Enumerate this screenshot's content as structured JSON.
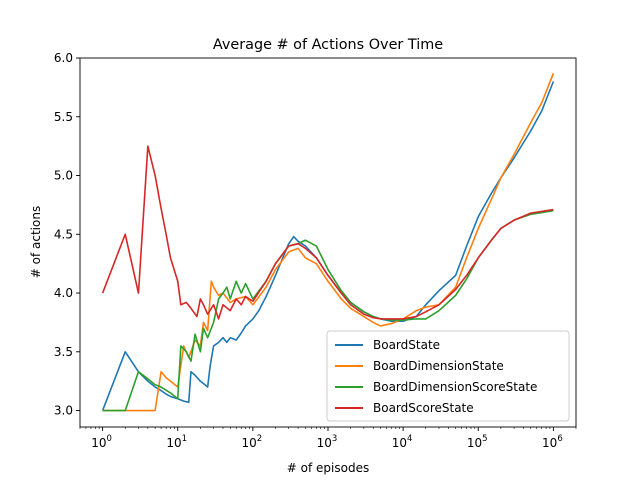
{
  "chart_data": {
    "type": "line",
    "title": "Average # of Actions Over Time",
    "xlabel": "# of episodes",
    "ylabel": "# of actions",
    "xscale": "log",
    "xlim": [
      0.5,
      2000000
    ],
    "ylim": [
      2.86,
      6.0
    ],
    "xticks": [
      {
        "value": 1,
        "base": "10",
        "exp": "0"
      },
      {
        "value": 10,
        "base": "10",
        "exp": "1"
      },
      {
        "value": 100,
        "base": "10",
        "exp": "2"
      },
      {
        "value": 1000,
        "base": "10",
        "exp": "3"
      },
      {
        "value": 10000,
        "base": "10",
        "exp": "4"
      },
      {
        "value": 100000,
        "base": "10",
        "exp": "5"
      },
      {
        "value": 1000000,
        "base": "10",
        "exp": "6"
      }
    ],
    "yticks": [
      {
        "value": 3.0,
        "label": "3.0"
      },
      {
        "value": 3.5,
        "label": "3.5"
      },
      {
        "value": 4.0,
        "label": "4.0"
      },
      {
        "value": 4.5,
        "label": "4.5"
      },
      {
        "value": 5.0,
        "label": "5.0"
      },
      {
        "value": 5.5,
        "label": "5.5"
      },
      {
        "value": 6.0,
        "label": "6.0"
      }
    ],
    "grid": false,
    "legend_position": "lower-right",
    "series": [
      {
        "name": "BoardState",
        "color": "#1f77b4",
        "points": [
          [
            1,
            3.0
          ],
          [
            2,
            3.5
          ],
          [
            3,
            3.33
          ],
          [
            4,
            3.25
          ],
          [
            5,
            3.2
          ],
          [
            6,
            3.17
          ],
          [
            7,
            3.14
          ],
          [
            8,
            3.12
          ],
          [
            10,
            3.1
          ],
          [
            12,
            3.08
          ],
          [
            14,
            3.07
          ],
          [
            15,
            3.33
          ],
          [
            17,
            3.3
          ],
          [
            20,
            3.25
          ],
          [
            23,
            3.22
          ],
          [
            25,
            3.2
          ],
          [
            27,
            3.38
          ],
          [
            30,
            3.55
          ],
          [
            35,
            3.58
          ],
          [
            40,
            3.62
          ],
          [
            45,
            3.58
          ],
          [
            50,
            3.62
          ],
          [
            60,
            3.6
          ],
          [
            70,
            3.66
          ],
          [
            80,
            3.72
          ],
          [
            100,
            3.78
          ],
          [
            120,
            3.85
          ],
          [
            150,
            3.97
          ],
          [
            200,
            4.15
          ],
          [
            250,
            4.3
          ],
          [
            300,
            4.42
          ],
          [
            350,
            4.48
          ],
          [
            400,
            4.44
          ],
          [
            500,
            4.4
          ],
          [
            700,
            4.3
          ],
          [
            1000,
            4.15
          ],
          [
            1500,
            4.0
          ],
          [
            2000,
            3.92
          ],
          [
            3000,
            3.84
          ],
          [
            4000,
            3.8
          ],
          [
            5000,
            3.78
          ],
          [
            7000,
            3.76
          ],
          [
            10000,
            3.76
          ],
          [
            15000,
            3.8
          ],
          [
            20000,
            3.9
          ],
          [
            30000,
            4.02
          ],
          [
            50000,
            4.15
          ],
          [
            70000,
            4.4
          ],
          [
            100000,
            4.65
          ],
          [
            150000,
            4.85
          ],
          [
            200000,
            4.98
          ],
          [
            300000,
            5.15
          ],
          [
            500000,
            5.38
          ],
          [
            700000,
            5.55
          ],
          [
            1000000,
            5.8
          ]
        ]
      },
      {
        "name": "BoardDimensionState",
        "color": "#ff7f0e",
        "points": [
          [
            1,
            3.0
          ],
          [
            2,
            3.0
          ],
          [
            3,
            3.0
          ],
          [
            4,
            3.0
          ],
          [
            5,
            3.0
          ],
          [
            6,
            3.33
          ],
          [
            7,
            3.28
          ],
          [
            8,
            3.25
          ],
          [
            10,
            3.2
          ],
          [
            12,
            3.55
          ],
          [
            14,
            3.45
          ],
          [
            17,
            3.6
          ],
          [
            20,
            3.55
          ],
          [
            22,
            3.75
          ],
          [
            25,
            3.68
          ],
          [
            28,
            4.1
          ],
          [
            30,
            4.05
          ],
          [
            35,
            3.98
          ],
          [
            40,
            4.0
          ],
          [
            50,
            3.92
          ],
          [
            60,
            3.95
          ],
          [
            80,
            3.97
          ],
          [
            100,
            3.9
          ],
          [
            150,
            4.05
          ],
          [
            200,
            4.2
          ],
          [
            300,
            4.35
          ],
          [
            400,
            4.38
          ],
          [
            500,
            4.3
          ],
          [
            700,
            4.25
          ],
          [
            1000,
            4.1
          ],
          [
            1500,
            3.95
          ],
          [
            2000,
            3.87
          ],
          [
            3000,
            3.8
          ],
          [
            4000,
            3.75
          ],
          [
            5000,
            3.72
          ],
          [
            7000,
            3.74
          ],
          [
            10000,
            3.78
          ],
          [
            15000,
            3.85
          ],
          [
            20000,
            3.88
          ],
          [
            30000,
            3.9
          ],
          [
            50000,
            4.05
          ],
          [
            70000,
            4.3
          ],
          [
            100000,
            4.55
          ],
          [
            150000,
            4.8
          ],
          [
            200000,
            4.98
          ],
          [
            300000,
            5.18
          ],
          [
            500000,
            5.45
          ],
          [
            700000,
            5.62
          ],
          [
            1000000,
            5.87
          ]
        ]
      },
      {
        "name": "BoardDimensionScoreState",
        "color": "#2ca02c",
        "points": [
          [
            1,
            3.0
          ],
          [
            2,
            3.0
          ],
          [
            3,
            3.33
          ],
          [
            4,
            3.27
          ],
          [
            5,
            3.22
          ],
          [
            6,
            3.2
          ],
          [
            8,
            3.15
          ],
          [
            10,
            3.1
          ],
          [
            11,
            3.55
          ],
          [
            13,
            3.5
          ],
          [
            15,
            3.42
          ],
          [
            17,
            3.65
          ],
          [
            20,
            3.5
          ],
          [
            22,
            3.7
          ],
          [
            25,
            3.62
          ],
          [
            30,
            3.75
          ],
          [
            35,
            3.95
          ],
          [
            40,
            4.0
          ],
          [
            45,
            4.05
          ],
          [
            50,
            3.95
          ],
          [
            60,
            4.1
          ],
          [
            70,
            4.0
          ],
          [
            80,
            4.08
          ],
          [
            100,
            3.95
          ],
          [
            150,
            4.1
          ],
          [
            200,
            4.25
          ],
          [
            300,
            4.4
          ],
          [
            400,
            4.42
          ],
          [
            500,
            4.45
          ],
          [
            700,
            4.4
          ],
          [
            1000,
            4.2
          ],
          [
            1500,
            4.02
          ],
          [
            2000,
            3.92
          ],
          [
            3000,
            3.84
          ],
          [
            4000,
            3.8
          ],
          [
            5000,
            3.78
          ],
          [
            7000,
            3.77
          ],
          [
            10000,
            3.77
          ],
          [
            15000,
            3.78
          ],
          [
            20000,
            3.78
          ],
          [
            30000,
            3.85
          ],
          [
            50000,
            3.98
          ],
          [
            70000,
            4.12
          ],
          [
            100000,
            4.3
          ],
          [
            150000,
            4.45
          ],
          [
            200000,
            4.55
          ],
          [
            300000,
            4.62
          ],
          [
            500000,
            4.67
          ],
          [
            1000000,
            4.7
          ]
        ]
      },
      {
        "name": "BoardScoreState",
        "color": "#d62728",
        "points": [
          [
            1,
            4.0
          ],
          [
            2,
            4.5
          ],
          [
            3,
            4.0
          ],
          [
            4,
            5.25
          ],
          [
            5,
            5.0
          ],
          [
            6,
            4.72
          ],
          [
            7,
            4.5
          ],
          [
            8,
            4.3
          ],
          [
            10,
            4.1
          ],
          [
            11,
            3.9
          ],
          [
            13,
            3.92
          ],
          [
            15,
            3.87
          ],
          [
            18,
            3.8
          ],
          [
            20,
            3.95
          ],
          [
            22,
            3.9
          ],
          [
            25,
            3.82
          ],
          [
            30,
            3.9
          ],
          [
            35,
            3.78
          ],
          [
            40,
            3.9
          ],
          [
            50,
            3.85
          ],
          [
            60,
            3.95
          ],
          [
            70,
            3.9
          ],
          [
            80,
            3.97
          ],
          [
            100,
            3.93
          ],
          [
            150,
            4.1
          ],
          [
            200,
            4.25
          ],
          [
            300,
            4.4
          ],
          [
            400,
            4.42
          ],
          [
            500,
            4.38
          ],
          [
            700,
            4.3
          ],
          [
            1000,
            4.15
          ],
          [
            1500,
            4.0
          ],
          [
            2000,
            3.9
          ],
          [
            3000,
            3.82
          ],
          [
            4000,
            3.79
          ],
          [
            5000,
            3.78
          ],
          [
            7000,
            3.78
          ],
          [
            10000,
            3.78
          ],
          [
            15000,
            3.8
          ],
          [
            20000,
            3.84
          ],
          [
            30000,
            3.9
          ],
          [
            50000,
            4.03
          ],
          [
            70000,
            4.15
          ],
          [
            100000,
            4.3
          ],
          [
            150000,
            4.45
          ],
          [
            200000,
            4.55
          ],
          [
            300000,
            4.62
          ],
          [
            500000,
            4.68
          ],
          [
            1000000,
            4.71
          ]
        ]
      }
    ]
  }
}
